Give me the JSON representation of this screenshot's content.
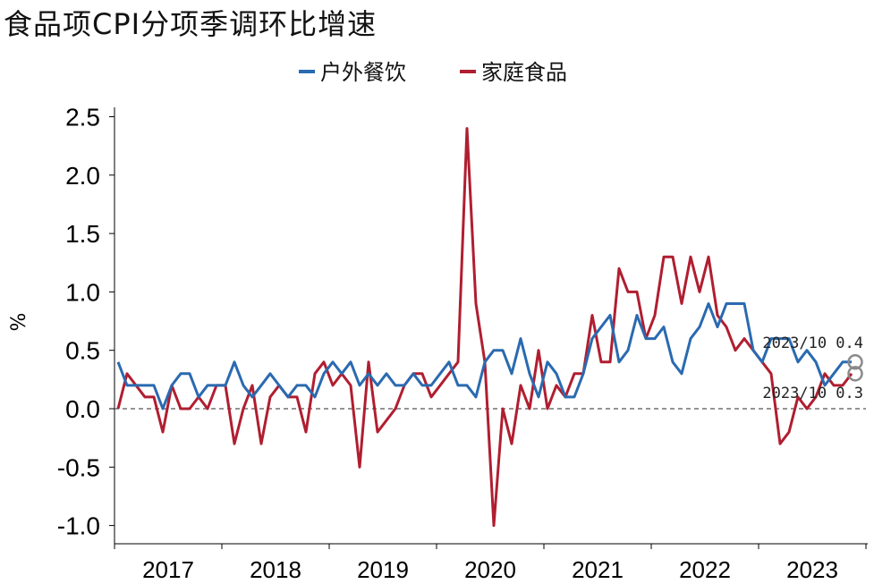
{
  "chart_data": {
    "type": "line",
    "title": "食品项CPI分项季调环比增速",
    "ylabel": "%",
    "xlabel": "",
    "ylim": [
      -1.0,
      2.5
    ],
    "yticks": [
      "2.5",
      "2.0",
      "1.5",
      "1.0",
      "0.5",
      "0.0",
      "-0.5",
      "-1.0"
    ],
    "ytick_values": [
      2.5,
      2.0,
      1.5,
      1.0,
      0.5,
      0.0,
      -0.5,
      -1.0
    ],
    "xticks": [
      "2017",
      "2018",
      "2019",
      "2020",
      "2021",
      "2022",
      "2023"
    ],
    "legend_position": "top-center",
    "reference_line": {
      "y": 0.0,
      "style": "dashed"
    },
    "x_start": "2017-01",
    "series": [
      {
        "name": "户外餐饮",
        "color": "#2a6ab0",
        "values": [
          0.4,
          0.2,
          0.2,
          0.2,
          0.2,
          0.0,
          0.2,
          0.3,
          0.3,
          0.1,
          0.2,
          0.2,
          0.2,
          0.4,
          0.2,
          0.1,
          0.2,
          0.3,
          0.2,
          0.1,
          0.2,
          0.2,
          0.1,
          0.3,
          0.4,
          0.3,
          0.4,
          0.2,
          0.3,
          0.2,
          0.3,
          0.2,
          0.2,
          0.3,
          0.2,
          0.2,
          0.3,
          0.4,
          0.2,
          0.2,
          0.1,
          0.4,
          0.5,
          0.5,
          0.3,
          0.6,
          0.3,
          0.1,
          0.4,
          0.3,
          0.1,
          0.1,
          0.3,
          0.6,
          0.7,
          0.8,
          0.4,
          0.5,
          0.8,
          0.6,
          0.6,
          0.7,
          0.4,
          0.3,
          0.6,
          0.7,
          0.9,
          0.7,
          0.9,
          0.9,
          0.9,
          0.5,
          0.4,
          0.6,
          0.6,
          0.6,
          0.4,
          0.5,
          0.4,
          0.2,
          0.3,
          0.4,
          0.4
        ]
      },
      {
        "name": "家庭食品",
        "color": "#b01e30",
        "values": [
          0.0,
          0.3,
          0.2,
          0.1,
          0.1,
          -0.2,
          0.2,
          0.0,
          0.0,
          0.1,
          0.0,
          0.2,
          0.2,
          -0.3,
          0.0,
          0.2,
          -0.3,
          0.1,
          0.2,
          0.1,
          0.1,
          -0.2,
          0.3,
          0.4,
          0.2,
          0.3,
          0.2,
          -0.5,
          0.4,
          -0.2,
          -0.1,
          0.0,
          0.2,
          0.3,
          0.3,
          0.1,
          0.2,
          0.3,
          0.4,
          2.4,
          0.9,
          0.4,
          -1.0,
          0.0,
          -0.3,
          0.2,
          0.0,
          0.5,
          0.0,
          0.2,
          0.1,
          0.3,
          0.3,
          0.8,
          0.4,
          0.4,
          1.2,
          1.0,
          1.0,
          0.6,
          0.8,
          1.3,
          1.3,
          0.9,
          1.3,
          1.0,
          1.3,
          0.8,
          0.7,
          0.5,
          0.6,
          0.5,
          0.4,
          0.3,
          -0.3,
          -0.2,
          0.1,
          0.0,
          0.1,
          0.3,
          0.2,
          0.2,
          0.3
        ]
      }
    ],
    "annotations": [
      {
        "label": "2023/10",
        "value": "0.4",
        "series": "户外餐饮"
      },
      {
        "label": "2023/10",
        "value": "0.3",
        "series": "家庭食品"
      }
    ]
  }
}
